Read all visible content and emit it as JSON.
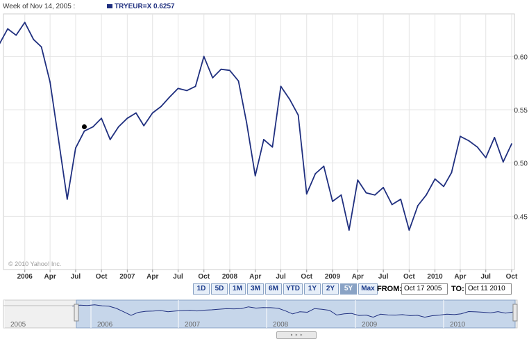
{
  "header": {
    "week_label": "Week of Nov 14, 2005 :",
    "series_label": "TRYEUR=X 0.6257",
    "series_color": "#1f2f7f"
  },
  "copyright": "© 2010 Yahoo! Inc.",
  "range_buttons": [
    {
      "label": "1D",
      "active": false
    },
    {
      "label": "5D",
      "active": false
    },
    {
      "label": "1M",
      "active": false
    },
    {
      "label": "3M",
      "active": false
    },
    {
      "label": "6M",
      "active": false
    },
    {
      "label": "YTD",
      "active": false
    },
    {
      "label": "1Y",
      "active": false
    },
    {
      "label": "2Y",
      "active": false
    },
    {
      "label": "5Y",
      "active": true
    },
    {
      "label": "Max",
      "active": false
    }
  ],
  "date_range": {
    "from_label": "FROM:",
    "from_value": "Oct 17 2005",
    "to_label": "TO:",
    "to_value": "Oct 11 2010"
  },
  "navigator": {
    "year_labels": [
      "2005",
      "2006",
      "2007",
      "2008",
      "2009",
      "2010"
    ],
    "handle_glyph": "◄►",
    "bottom_handle_glyph": "‣ ‣ ‣"
  },
  "chart_data": {
    "type": "line",
    "title": "",
    "xlabel": "",
    "ylabel": "",
    "x_tick_labels": [
      "2006",
      "Apr",
      "Jul",
      "Oct",
      "2007",
      "Apr",
      "Jul",
      "Oct",
      "2008",
      "Apr",
      "Jul",
      "Oct",
      "2009",
      "Apr",
      "Jul",
      "Oct",
      "2010",
      "Apr",
      "Jul",
      "Oct"
    ],
    "x_tick_dates": [
      "2006-01",
      "2006-04",
      "2006-07",
      "2006-10",
      "2007-01",
      "2007-04",
      "2007-07",
      "2007-10",
      "2008-01",
      "2008-04",
      "2008-07",
      "2008-10",
      "2009-01",
      "2009-04",
      "2009-07",
      "2009-10",
      "2010-01",
      "2010-04",
      "2010-07",
      "2010-10"
    ],
    "y_ticks": [
      0.45,
      0.5,
      0.55,
      0.6
    ],
    "y_tick_labels": [
      "0.45",
      "0.50",
      "0.55",
      "0.60"
    ],
    "ylim": [
      0.4,
      0.64
    ],
    "xlim": [
      "2005-10-17",
      "2010-10-11"
    ],
    "grid": true,
    "y_axis_side": "right",
    "series": [
      {
        "color": "#1f2f7f",
        "x": [
          "2005-10",
          "2005-11",
          "2005-12",
          "2006-01",
          "2006-02",
          "2006-03",
          "2006-04",
          "2006-05",
          "2006-06",
          "2006-07",
          "2006-08",
          "2006-09",
          "2006-10",
          "2006-11",
          "2006-12",
          "2007-01",
          "2007-02",
          "2007-03",
          "2007-04",
          "2007-05",
          "2007-06",
          "2007-07",
          "2007-08",
          "2007-09",
          "2007-10",
          "2007-11",
          "2007-12",
          "2008-01",
          "2008-02",
          "2008-03",
          "2008-04",
          "2008-05",
          "2008-06",
          "2008-07",
          "2008-08",
          "2008-09",
          "2008-10",
          "2008-11",
          "2008-12",
          "2009-01",
          "2009-02",
          "2009-03",
          "2009-04",
          "2009-05",
          "2009-06",
          "2009-07",
          "2009-08",
          "2009-09",
          "2009-10",
          "2009-11",
          "2009-12",
          "2010-01",
          "2010-02",
          "2010-03",
          "2010-04",
          "2010-05",
          "2010-06",
          "2010-07",
          "2010-08",
          "2010-09",
          "2010-10"
        ],
        "y": [
          0.611,
          0.626,
          0.62,
          0.632,
          0.616,
          0.609,
          0.576,
          0.522,
          0.466,
          0.514,
          0.53,
          0.534,
          0.542,
          0.522,
          0.534,
          0.542,
          0.547,
          0.535,
          0.547,
          0.553,
          0.562,
          0.57,
          0.568,
          0.572,
          0.6,
          0.58,
          0.588,
          0.587,
          0.577,
          0.538,
          0.488,
          0.522,
          0.515,
          0.572,
          0.56,
          0.545,
          0.471,
          0.49,
          0.497,
          0.464,
          0.47,
          0.437,
          0.484,
          0.472,
          0.47,
          0.477,
          0.461,
          0.466,
          0.437,
          0.46,
          0.47,
          0.485,
          0.478,
          0.491,
          0.525,
          0.521,
          0.515,
          0.505,
          0.524,
          0.501,
          0.518
        ]
      }
    ],
    "marker": {
      "x": "2006-08",
      "y": 0.534
    }
  }
}
